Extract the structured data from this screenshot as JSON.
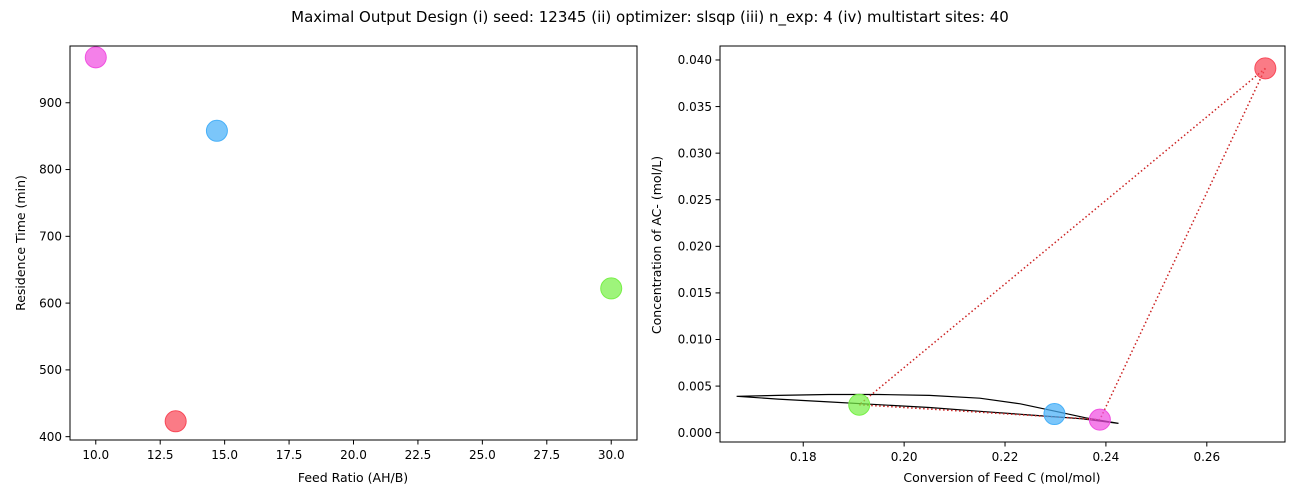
{
  "figure": {
    "title": "Maximal Output Design (i) seed: 12345 (ii) optimizer: slsqp (iii) n_exp: 4 (iv) multistart sites: 40"
  },
  "chart_data": [
    {
      "type": "scatter",
      "title": "",
      "xlabel": "Feed Ratio (AH/B)",
      "ylabel": "Residence Time (min)",
      "xlim": [
        9.0,
        31.0
      ],
      "ylim": [
        395,
        985
      ],
      "xticks": [
        10.0,
        12.5,
        15.0,
        17.5,
        20.0,
        22.5,
        25.0,
        27.5,
        30.0
      ],
      "xtick_labels": [
        "10.0",
        "12.5",
        "15.0",
        "17.5",
        "20.0",
        "22.5",
        "25.0",
        "27.5",
        "30.0"
      ],
      "yticks": [
        400,
        500,
        600,
        700,
        800,
        900
      ],
      "ytick_labels": [
        "400",
        "500",
        "600",
        "700",
        "800",
        "900"
      ],
      "grid": false,
      "points": [
        {
          "x": 10.0,
          "y": 968,
          "color": "#f04fe0"
        },
        {
          "x": 14.7,
          "y": 858,
          "color": "#48b0f8"
        },
        {
          "x": 30.0,
          "y": 622,
          "color": "#78f048"
        },
        {
          "x": 13.1,
          "y": 423,
          "color": "#f84858"
        }
      ]
    },
    {
      "type": "scatter",
      "title": "",
      "xlabel": "Conversion of Feed C (mol/mol)",
      "ylabel": "Concentration of AC- (mol/L)",
      "xlim": [
        0.1635,
        0.2755
      ],
      "ylim": [
        -0.001,
        0.0415
      ],
      "xticks": [
        0.18,
        0.2,
        0.22,
        0.24,
        0.26
      ],
      "xtick_labels": [
        "0.18",
        "0.20",
        "0.22",
        "0.24",
        "0.26"
      ],
      "yticks": [
        0.0,
        0.005,
        0.01,
        0.015,
        0.02,
        0.025,
        0.03,
        0.035,
        0.04
      ],
      "ytick_labels": [
        "0.000",
        "0.005",
        "0.010",
        "0.015",
        "0.020",
        "0.025",
        "0.030",
        "0.035",
        "0.040"
      ],
      "grid": false,
      "points": [
        {
          "x": 0.2716,
          "y": 0.0391,
          "color": "#f84858"
        },
        {
          "x": 0.1911,
          "y": 0.003,
          "color": "#78f048"
        },
        {
          "x": 0.2298,
          "y": 0.002,
          "color": "#48b0f8"
        },
        {
          "x": 0.2388,
          "y": 0.0014,
          "color": "#f04fe0"
        }
      ],
      "connections": {
        "style": "dotted",
        "color": "#cc2222",
        "pairs": [
          [
            0,
            1
          ],
          [
            0,
            3
          ],
          [
            1,
            3
          ]
        ]
      },
      "boundary": {
        "color": "#000000",
        "upper": [
          [
            0.1668,
            0.0039
          ],
          [
            0.175,
            0.004
          ],
          [
            0.185,
            0.0041
          ],
          [
            0.195,
            0.0041
          ],
          [
            0.205,
            0.004
          ],
          [
            0.215,
            0.0037
          ],
          [
            0.223,
            0.0031
          ],
          [
            0.23,
            0.0023
          ],
          [
            0.236,
            0.0016
          ],
          [
            0.2425,
            0.001
          ]
        ],
        "lower": [
          [
            0.2425,
            0.001
          ],
          [
            0.235,
            0.0015
          ],
          [
            0.225,
            0.0019
          ],
          [
            0.215,
            0.0023
          ],
          [
            0.205,
            0.0027
          ],
          [
            0.195,
            0.003
          ],
          [
            0.185,
            0.0033
          ],
          [
            0.175,
            0.0036
          ],
          [
            0.1668,
            0.0039
          ]
        ]
      }
    }
  ]
}
